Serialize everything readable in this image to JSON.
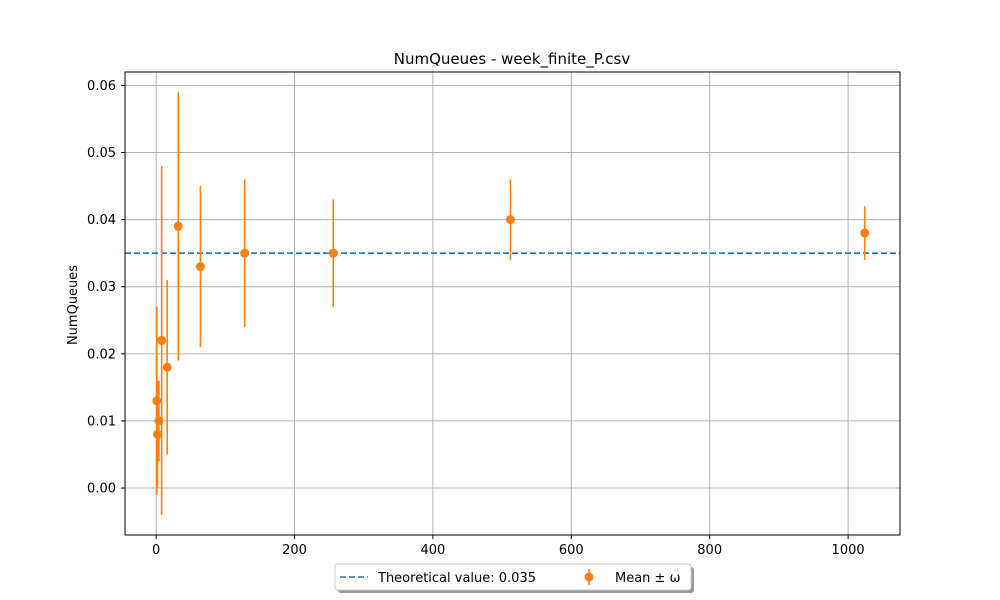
{
  "chart_data": {
    "type": "scatter",
    "title": "NumQueues - week_finite_P.csv",
    "xlabel": "",
    "ylabel": "NumQueues",
    "xlim": [
      -45,
      1075
    ],
    "ylim": [
      -0.007,
      0.062
    ],
    "xticks": [
      0,
      200,
      400,
      600,
      800,
      1000
    ],
    "yticks": [
      0.0,
      0.01,
      0.02,
      0.03,
      0.04,
      0.05,
      0.06
    ],
    "ytick_labels": [
      "0.00",
      "0.01",
      "0.02",
      "0.03",
      "0.04",
      "0.05",
      "0.06"
    ],
    "grid": true,
    "legend_placement": "bottom-center",
    "theoretical": {
      "name": "Theoretical value: 0.035",
      "value": 0.035,
      "color": "#1f77b4",
      "style": "dashed"
    },
    "series": [
      {
        "name": "Mean ± ω",
        "color": "#ff7f0e",
        "points": [
          {
            "x": 1,
            "y": 0.013,
            "err": 0.014
          },
          {
            "x": 2,
            "y": 0.008,
            "err": 0.008
          },
          {
            "x": 4,
            "y": 0.01,
            "err": 0.006
          },
          {
            "x": 8,
            "y": 0.022,
            "err": 0.026
          },
          {
            "x": 16,
            "y": 0.018,
            "err": 0.013
          },
          {
            "x": 32,
            "y": 0.039,
            "err": 0.02
          },
          {
            "x": 64,
            "y": 0.033,
            "err": 0.012
          },
          {
            "x": 128,
            "y": 0.035,
            "err": 0.011
          },
          {
            "x": 256,
            "y": 0.035,
            "err": 0.008
          },
          {
            "x": 512,
            "y": 0.04,
            "err": 0.006
          },
          {
            "x": 1024,
            "y": 0.038,
            "err": 0.004
          }
        ]
      }
    ]
  }
}
